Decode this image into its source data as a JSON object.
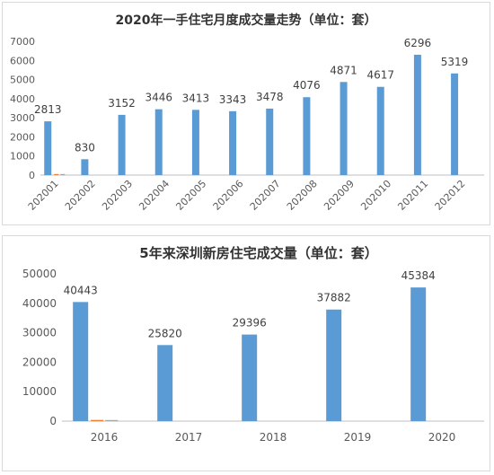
{
  "chart_data": [
    {
      "type": "bar",
      "title": "2020年一手住宅月度成交量走势（单位：套）",
      "categories": [
        "202001",
        "202002",
        "202003",
        "202004",
        "202005",
        "202006",
        "202007",
        "202008",
        "202009",
        "202010",
        "202011",
        "202012"
      ],
      "series": [
        {
          "values": [
            2813,
            830,
            3152,
            3446,
            3413,
            3343,
            3478,
            4076,
            4871,
            4617,
            6296,
            5319
          ],
          "color": "#5b9bd5"
        },
        {
          "values": [
            50,
            0,
            0,
            0,
            0,
            0,
            0,
            0,
            0,
            0,
            0,
            0
          ],
          "color": "#ed7d31"
        },
        {
          "values": [
            40,
            0,
            0,
            0,
            0,
            0,
            0,
            0,
            0,
            0,
            0,
            0
          ],
          "color": "#a5a5a5"
        }
      ],
      "data_labels": [
        "2813",
        "830",
        "3152",
        "3446",
        "3413",
        "3343",
        "3478",
        "4076",
        "4871",
        "4617",
        "6296",
        "5319"
      ],
      "yticks": [
        "0",
        "1000",
        "2000",
        "3000",
        "4000",
        "5000",
        "6000",
        "7000"
      ],
      "ylim": [
        0,
        7000
      ],
      "xlabel": "",
      "ylabel": "",
      "grid": false
    },
    {
      "type": "bar",
      "title": "5年来深圳新房住宅成交量（单位：套）",
      "categories": [
        "2016",
        "2017",
        "2018",
        "2019",
        "2020"
      ],
      "series": [
        {
          "values": [
            40443,
            25820,
            29396,
            37882,
            45384
          ],
          "color": "#5b9bd5"
        },
        {
          "values": [
            400,
            0,
            0,
            0,
            0
          ],
          "color": "#ed7d31"
        },
        {
          "values": [
            300,
            0,
            0,
            0,
            0
          ],
          "color": "#a5a5a5"
        }
      ],
      "data_labels": [
        "40443",
        "25820",
        "29396",
        "37882",
        "45384"
      ],
      "yticks": [
        "0",
        "10000",
        "20000",
        "30000",
        "40000",
        "50000"
      ],
      "ylim": [
        0,
        50000
      ],
      "xlabel": "",
      "ylabel": "",
      "grid": false
    }
  ]
}
